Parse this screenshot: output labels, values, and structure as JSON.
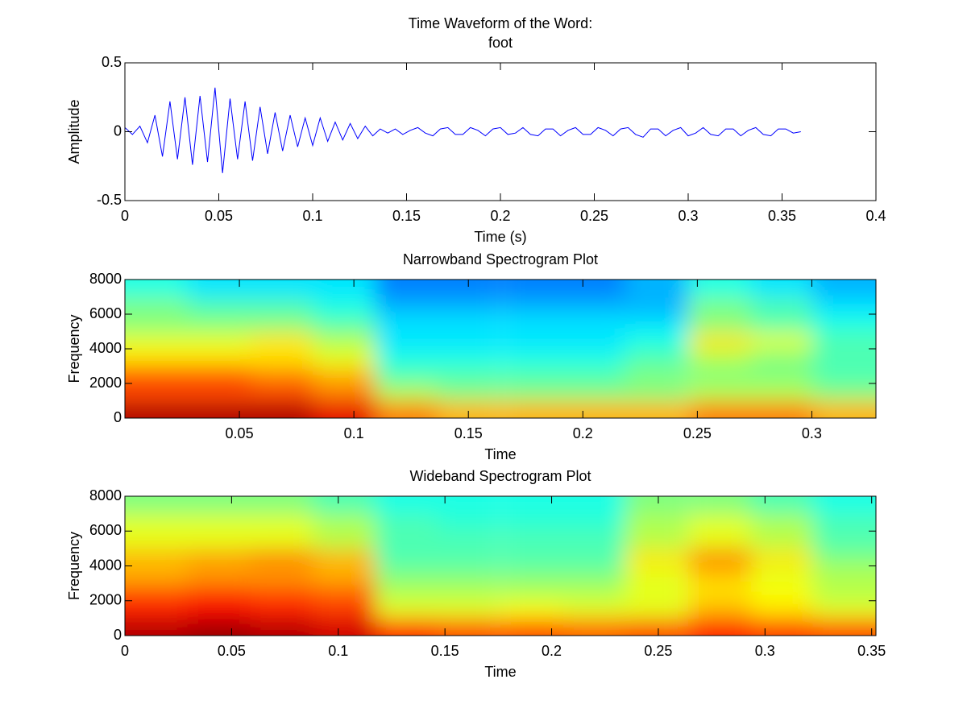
{
  "chart_data": [
    {
      "type": "line",
      "title": [
        "Time Waveform of the Word:",
        "foot"
      ],
      "xlabel": "Time (s)",
      "ylabel": "Amplitude",
      "x": [
        0,
        0.004,
        0.008,
        0.012,
        0.016,
        0.02,
        0.024,
        0.028,
        0.032,
        0.036,
        0.04,
        0.044,
        0.048,
        0.052,
        0.056,
        0.06,
        0.064,
        0.068,
        0.072,
        0.076,
        0.08,
        0.084,
        0.088,
        0.092,
        0.096,
        0.1,
        0.104,
        0.108,
        0.112,
        0.116,
        0.12,
        0.124,
        0.128,
        0.132,
        0.136,
        0.14,
        0.144,
        0.148,
        0.152,
        0.156,
        0.16,
        0.164,
        0.168,
        0.172,
        0.176,
        0.18,
        0.184,
        0.188,
        0.192,
        0.196,
        0.2,
        0.204,
        0.208,
        0.212,
        0.216,
        0.22,
        0.224,
        0.228,
        0.232,
        0.236,
        0.24,
        0.244,
        0.248,
        0.252,
        0.256,
        0.26,
        0.264,
        0.268,
        0.272,
        0.276,
        0.28,
        0.284,
        0.288,
        0.292,
        0.296,
        0.3,
        0.304,
        0.308,
        0.312,
        0.316,
        0.32,
        0.324,
        0.328,
        0.332,
        0.336,
        0.34,
        0.344,
        0.348,
        0.352,
        0.356,
        0.36
      ],
      "values": [
        0.03,
        -0.02,
        0.04,
        -0.08,
        0.12,
        -0.18,
        0.22,
        -0.2,
        0.25,
        -0.24,
        0.26,
        -0.22,
        0.32,
        -0.3,
        0.24,
        -0.2,
        0.22,
        -0.21,
        0.18,
        -0.16,
        0.14,
        -0.14,
        0.12,
        -0.11,
        0.1,
        -0.1,
        0.1,
        -0.07,
        0.07,
        -0.06,
        0.06,
        -0.05,
        0.04,
        -0.03,
        0.02,
        -0.01,
        0.02,
        -0.02,
        0.01,
        0.03,
        -0.01,
        -0.03,
        0.02,
        0.03,
        -0.02,
        -0.02,
        0.03,
        0.01,
        -0.03,
        0.02,
        0.03,
        -0.02,
        -0.01,
        0.03,
        -0.02,
        -0.03,
        0.02,
        0.02,
        -0.03,
        0.01,
        0.03,
        -0.02,
        -0.02,
        0.03,
        0.01,
        -0.03,
        0.02,
        0.03,
        -0.02,
        -0.04,
        0.02,
        0.02,
        -0.03,
        0.01,
        0.03,
        -0.03,
        -0.01,
        0.03,
        -0.02,
        -0.03,
        0.02,
        0.02,
        -0.03,
        0.01,
        0.03,
        -0.02,
        -0.03,
        0.02,
        0.02,
        -0.01,
        0
      ],
      "color": "#0000ff",
      "xlim": [
        0,
        0.4
      ],
      "ylim": [
        -0.5,
        0.5
      ],
      "xticks": [
        0,
        0.05,
        0.1,
        0.15,
        0.2,
        0.25,
        0.3,
        0.35,
        0.4
      ],
      "yticks": [
        -0.5,
        0,
        0.5
      ]
    },
    {
      "type": "heatmap",
      "title": [
        "Narrowband Spectrogram Plot"
      ],
      "xlabel": "Time",
      "ylabel": "Frequency",
      "colormap": "jet",
      "clim": [
        0,
        1
      ],
      "x": [
        0.0137,
        0.041,
        0.0684,
        0.0957,
        0.123,
        0.15,
        0.178,
        0.205,
        0.232,
        0.26,
        0.287,
        0.314
      ],
      "y": [
        500,
        1500,
        2500,
        3500,
        4500,
        5500,
        6500,
        7500
      ],
      "values": [
        [
          0.95,
          0.95,
          0.95,
          0.9,
          0.75,
          0.7,
          0.7,
          0.7,
          0.7,
          0.75,
          0.75,
          0.7
        ],
        [
          0.8,
          0.8,
          0.8,
          0.75,
          0.55,
          0.5,
          0.5,
          0.5,
          0.5,
          0.55,
          0.55,
          0.5
        ],
        [
          0.8,
          0.8,
          0.75,
          0.7,
          0.45,
          0.45,
          0.45,
          0.45,
          0.5,
          0.5,
          0.5,
          0.45
        ],
        [
          0.65,
          0.65,
          0.65,
          0.6,
          0.4,
          0.4,
          0.4,
          0.4,
          0.45,
          0.55,
          0.5,
          0.45
        ],
        [
          0.6,
          0.6,
          0.65,
          0.55,
          0.35,
          0.35,
          0.35,
          0.35,
          0.4,
          0.65,
          0.6,
          0.45
        ],
        [
          0.5,
          0.5,
          0.5,
          0.45,
          0.35,
          0.35,
          0.35,
          0.35,
          0.35,
          0.5,
          0.45,
          0.4
        ],
        [
          0.5,
          0.45,
          0.45,
          0.4,
          0.3,
          0.3,
          0.3,
          0.3,
          0.3,
          0.5,
          0.45,
          0.35
        ],
        [
          0.4,
          0.35,
          0.35,
          0.35,
          0.25,
          0.25,
          0.25,
          0.25,
          0.3,
          0.4,
          0.35,
          0.3
        ]
      ],
      "xlim": [
        0,
        0.328
      ],
      "ylim": [
        0,
        8000
      ],
      "xticks": [
        0.05,
        0.1,
        0.15,
        0.2,
        0.25,
        0.3
      ],
      "yticks": [
        0,
        2000,
        4000,
        6000,
        8000
      ]
    },
    {
      "type": "heatmap",
      "title": [
        "Wideband Spectrogram Plot"
      ],
      "xlabel": "Time",
      "ylabel": "Frequency",
      "colormap": "jet",
      "clim": [
        0,
        1
      ],
      "x": [
        0.0147,
        0.044,
        0.0733,
        0.1027,
        0.132,
        0.161,
        0.191,
        0.22,
        0.249,
        0.279,
        0.308,
        0.337
      ],
      "y": [
        500,
        1500,
        2500,
        3500,
        4500,
        5500,
        6500,
        7500
      ],
      "values": [
        [
          0.95,
          0.97,
          0.95,
          0.92,
          0.85,
          0.8,
          0.8,
          0.78,
          0.8,
          0.85,
          0.82,
          0.8
        ],
        [
          0.85,
          0.88,
          0.85,
          0.82,
          0.6,
          0.6,
          0.62,
          0.6,
          0.6,
          0.7,
          0.65,
          0.6
        ],
        [
          0.8,
          0.82,
          0.8,
          0.78,
          0.55,
          0.55,
          0.55,
          0.55,
          0.6,
          0.65,
          0.62,
          0.55
        ],
        [
          0.7,
          0.72,
          0.72,
          0.7,
          0.5,
          0.5,
          0.5,
          0.5,
          0.6,
          0.68,
          0.6,
          0.55
        ],
        [
          0.7,
          0.72,
          0.75,
          0.7,
          0.45,
          0.45,
          0.45,
          0.45,
          0.65,
          0.75,
          0.65,
          0.5
        ],
        [
          0.6,
          0.6,
          0.6,
          0.55,
          0.45,
          0.45,
          0.45,
          0.45,
          0.55,
          0.6,
          0.55,
          0.45
        ],
        [
          0.6,
          0.6,
          0.6,
          0.55,
          0.45,
          0.42,
          0.42,
          0.42,
          0.55,
          0.6,
          0.55,
          0.45
        ],
        [
          0.5,
          0.5,
          0.5,
          0.45,
          0.4,
          0.4,
          0.4,
          0.4,
          0.5,
          0.5,
          0.45,
          0.4
        ]
      ],
      "xlim": [
        0,
        0.352
      ],
      "ylim": [
        0,
        8000
      ],
      "xticks": [
        0,
        0.05,
        0.1,
        0.15,
        0.2,
        0.25,
        0.3,
        0.35
      ],
      "yticks": [
        0,
        2000,
        4000,
        6000,
        8000
      ]
    }
  ]
}
